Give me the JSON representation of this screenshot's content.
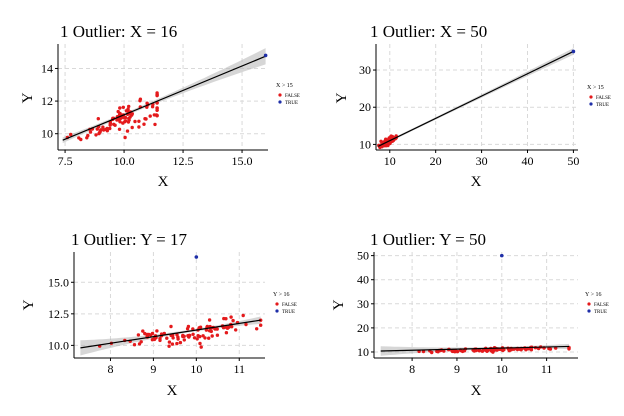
{
  "colors": {
    "false_points": "#e41a1c",
    "true_points": "#1f2fa8",
    "band": "#b5b5b5",
    "grid": "#d9d9d9"
  },
  "chart_data": [
    {
      "type": "scatter",
      "id": "p1",
      "title": "1 Outlier: X = 16",
      "xlabel": "X",
      "ylabel": "Y",
      "xlim": [
        7.2,
        16.1
      ],
      "ylim": [
        9.0,
        15.5
      ],
      "xticks": [
        7.5,
        10.0,
        12.5,
        15.0
      ],
      "xtick_labels": [
        "7.5",
        "10.0",
        "12.5",
        "15.0"
      ],
      "yticks": [
        10,
        12,
        14
      ],
      "ytick_labels": [
        "10",
        "12",
        "14"
      ],
      "legend": {
        "title": "X > 15",
        "entries": [
          "FALSE",
          "TRUE"
        ]
      },
      "fit": {
        "x0": 7.4,
        "y0": 9.6,
        "x1": 16.0,
        "y1": 14.75
      },
      "band": {
        "w_min": 0.1,
        "w_max": 0.5,
        "center": 10.0
      },
      "scatter_false": {
        "center_x": 10.0,
        "center_y": 11.0,
        "spread_x": 0.9,
        "spread_y": 0.8,
        "slope": 0.58,
        "count": 100,
        "x_min": 7.6,
        "x_max": 11.4,
        "y_min": 9.2,
        "y_max": 12.9
      },
      "outliers": [
        {
          "x": 16.0,
          "y": 14.8
        }
      ]
    },
    {
      "type": "scatter",
      "id": "p2",
      "title": "1 Outlier: X = 50",
      "xlabel": "X",
      "ylabel": "Y",
      "xlim": [
        7.0,
        51.0
      ],
      "ylim": [
        8.5,
        37.0
      ],
      "xticks": [
        10,
        20,
        30,
        40,
        50
      ],
      "xtick_labels": [
        "10",
        "20",
        "30",
        "40",
        "50"
      ],
      "yticks": [
        10,
        20,
        30
      ],
      "ytick_labels": [
        "10",
        "20",
        "30"
      ],
      "legend": {
        "title": "X > 15",
        "entries": [
          "FALSE",
          "TRUE"
        ]
      },
      "fit": {
        "x0": 7.5,
        "y0": 9.5,
        "x1": 50.0,
        "y1": 35.0
      },
      "band": {
        "w_min": 0.3,
        "w_max": 0.9,
        "center": 10.0
      },
      "scatter_false": {
        "center_x": 9.8,
        "center_y": 10.9,
        "spread_x": 0.9,
        "spread_y": 0.8,
        "slope": 0.6,
        "count": 100,
        "x_min": 7.6,
        "x_max": 11.4,
        "y_min": 9.2,
        "y_max": 12.9
      },
      "outliers": [
        {
          "x": 50.0,
          "y": 35.0
        }
      ]
    },
    {
      "type": "scatter",
      "id": "p3",
      "title": "1 Outlier: Y = 17",
      "xlabel": "X",
      "ylabel": "Y",
      "xlim": [
        7.15,
        11.6
      ],
      "ylim": [
        9.0,
        17.4
      ],
      "xticks": [
        8,
        9,
        10,
        11
      ],
      "xtick_labels": [
        "8",
        "9",
        "10",
        "11"
      ],
      "yticks": [
        10.0,
        12.5,
        15.0
      ],
      "ytick_labels": [
        "10.0",
        "12.5",
        "15.0"
      ],
      "legend": {
        "title": "Y > 16",
        "entries": [
          "FALSE",
          "TRUE"
        ]
      },
      "fit": {
        "x0": 7.3,
        "y0": 9.8,
        "x1": 11.5,
        "y1": 12.0
      },
      "band": {
        "w_min": 0.1,
        "w_max": 0.6,
        "center": 9.9
      },
      "scatter_false": {
        "center_x": 9.9,
        "center_y": 11.0,
        "spread_x": 0.8,
        "spread_y": 0.7,
        "slope": 0.5,
        "count": 100,
        "x_min": 7.3,
        "x_max": 11.5,
        "y_min": 9.3,
        "y_max": 12.9
      },
      "outliers": [
        {
          "x": 10.0,
          "y": 17.0
        }
      ]
    },
    {
      "type": "scatter",
      "id": "p4",
      "title": "1 Outlier: Y = 50",
      "xlabel": "X",
      "ylabel": "Y",
      "xlim": [
        7.15,
        11.7
      ],
      "ylim": [
        7.5,
        51.5
      ],
      "xticks": [
        8,
        9,
        10,
        11
      ],
      "xtick_labels": [
        "8",
        "9",
        "10",
        "11"
      ],
      "yticks": [
        10,
        20,
        30,
        40,
        50
      ],
      "ytick_labels": [
        "10",
        "20",
        "30",
        "40",
        "50"
      ],
      "legend": {
        "title": "Y > 16",
        "entries": [
          "FALSE",
          "TRUE"
        ]
      },
      "fit": {
        "x0": 7.3,
        "y0": 10.4,
        "x1": 11.5,
        "y1": 12.3
      },
      "band": {
        "w_min": 0.5,
        "w_max": 2.0,
        "center": 9.9
      },
      "scatter_false": {
        "center_x": 9.9,
        "center_y": 11.0,
        "spread_x": 0.8,
        "spread_y": 0.7,
        "slope": 0.5,
        "count": 100,
        "x_min": 7.3,
        "x_max": 11.5,
        "y_min": 9.3,
        "y_max": 12.9
      },
      "outliers": [
        {
          "x": 10.0,
          "y": 50.0
        }
      ]
    }
  ]
}
